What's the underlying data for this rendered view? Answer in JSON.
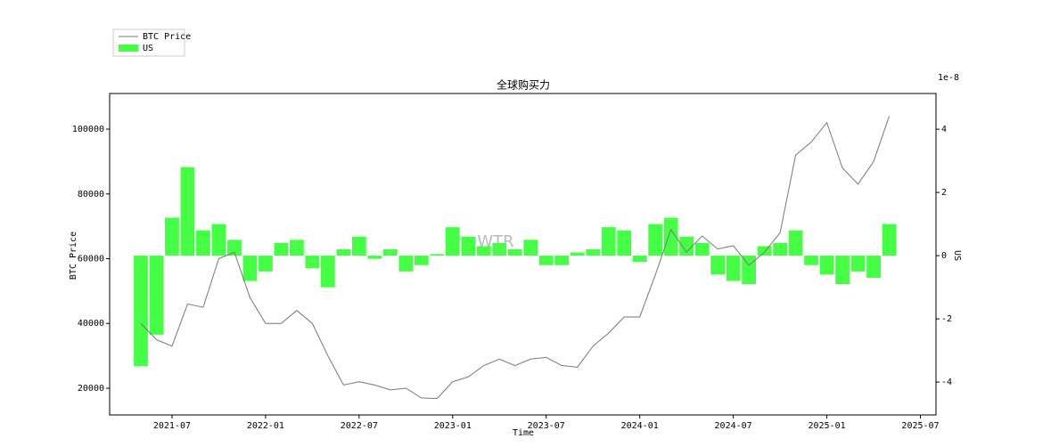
{
  "chart_data": {
    "type": "bar-line-dual",
    "title": "全球购买力",
    "x_label": "Time",
    "y_label": "BTC Price",
    "y2_label": "US",
    "y2_offset_label": "1e-8",
    "watermark": "WTR",
    "x": [
      "2021-05",
      "2021-06",
      "2021-07",
      "2021-08",
      "2021-09",
      "2021-10",
      "2021-11",
      "2021-12",
      "2022-01",
      "2022-02",
      "2022-03",
      "2022-04",
      "2022-05",
      "2022-06",
      "2022-07",
      "2022-08",
      "2022-09",
      "2022-10",
      "2022-11",
      "2022-12",
      "2023-01",
      "2023-02",
      "2023-03",
      "2023-04",
      "2023-05",
      "2023-06",
      "2023-07",
      "2023-08",
      "2023-09",
      "2023-10",
      "2023-11",
      "2023-12",
      "2024-01",
      "2024-02",
      "2024-03",
      "2024-04",
      "2024-05",
      "2024-06",
      "2024-07",
      "2024-08",
      "2024-09",
      "2024-10",
      "2024-11",
      "2024-12",
      "2025-01",
      "2025-02",
      "2025-03",
      "2025-04",
      "2025-05"
    ],
    "series": [
      {
        "name": "BTC Price",
        "color": "#777777",
        "kind": "line",
        "values": [
          40000,
          35000,
          33000,
          46000,
          45000,
          60000,
          62000,
          48000,
          40000,
          40000,
          44000,
          40000,
          30000,
          21000,
          22000,
          21000,
          19500,
          20000,
          17000,
          16800,
          22000,
          23500,
          27000,
          29000,
          27000,
          29000,
          29500,
          27000,
          26500,
          33000,
          37000,
          42000,
          42000,
          55000,
          69000,
          62000,
          67000,
          63000,
          64000,
          58000,
          62000,
          68000,
          92000,
          96000,
          102000,
          88000,
          83000,
          90000,
          104000
        ]
      },
      {
        "name": "US",
        "color": "#44ff44",
        "kind": "bar",
        "axis": "y2",
        "values": [
          -3.5,
          -2.5,
          1.2,
          2.8,
          0.8,
          1.0,
          0.5,
          -0.8,
          -0.5,
          0.4,
          0.5,
          -0.4,
          -1.0,
          0.2,
          0.6,
          -0.1,
          0.2,
          -0.5,
          -0.3,
          0.05,
          0.9,
          0.6,
          0.3,
          0.4,
          0.2,
          0.5,
          -0.3,
          -0.3,
          0.1,
          0.2,
          0.9,
          0.8,
          -0.2,
          1.0,
          1.2,
          0.6,
          0.4,
          -0.6,
          -0.8,
          -0.9,
          0.3,
          0.4,
          0.8,
          -0.3,
          -0.6,
          -0.9,
          -0.5,
          -0.7,
          1.0
        ]
      }
    ],
    "xlim": [
      "2021-03",
      "2025-08"
    ],
    "xticks": [
      "2021-07",
      "2022-01",
      "2022-07",
      "2023-01",
      "2023-07",
      "2024-01",
      "2024-07",
      "2025-01",
      "2025-07"
    ],
    "ylim": [
      11750,
      111000
    ],
    "yticks": [
      20000,
      40000,
      60000,
      80000,
      100000
    ],
    "y2lim": [
      -5.04,
      5.13
    ],
    "y2ticks": [
      -4,
      -2,
      0,
      2,
      4
    ]
  }
}
